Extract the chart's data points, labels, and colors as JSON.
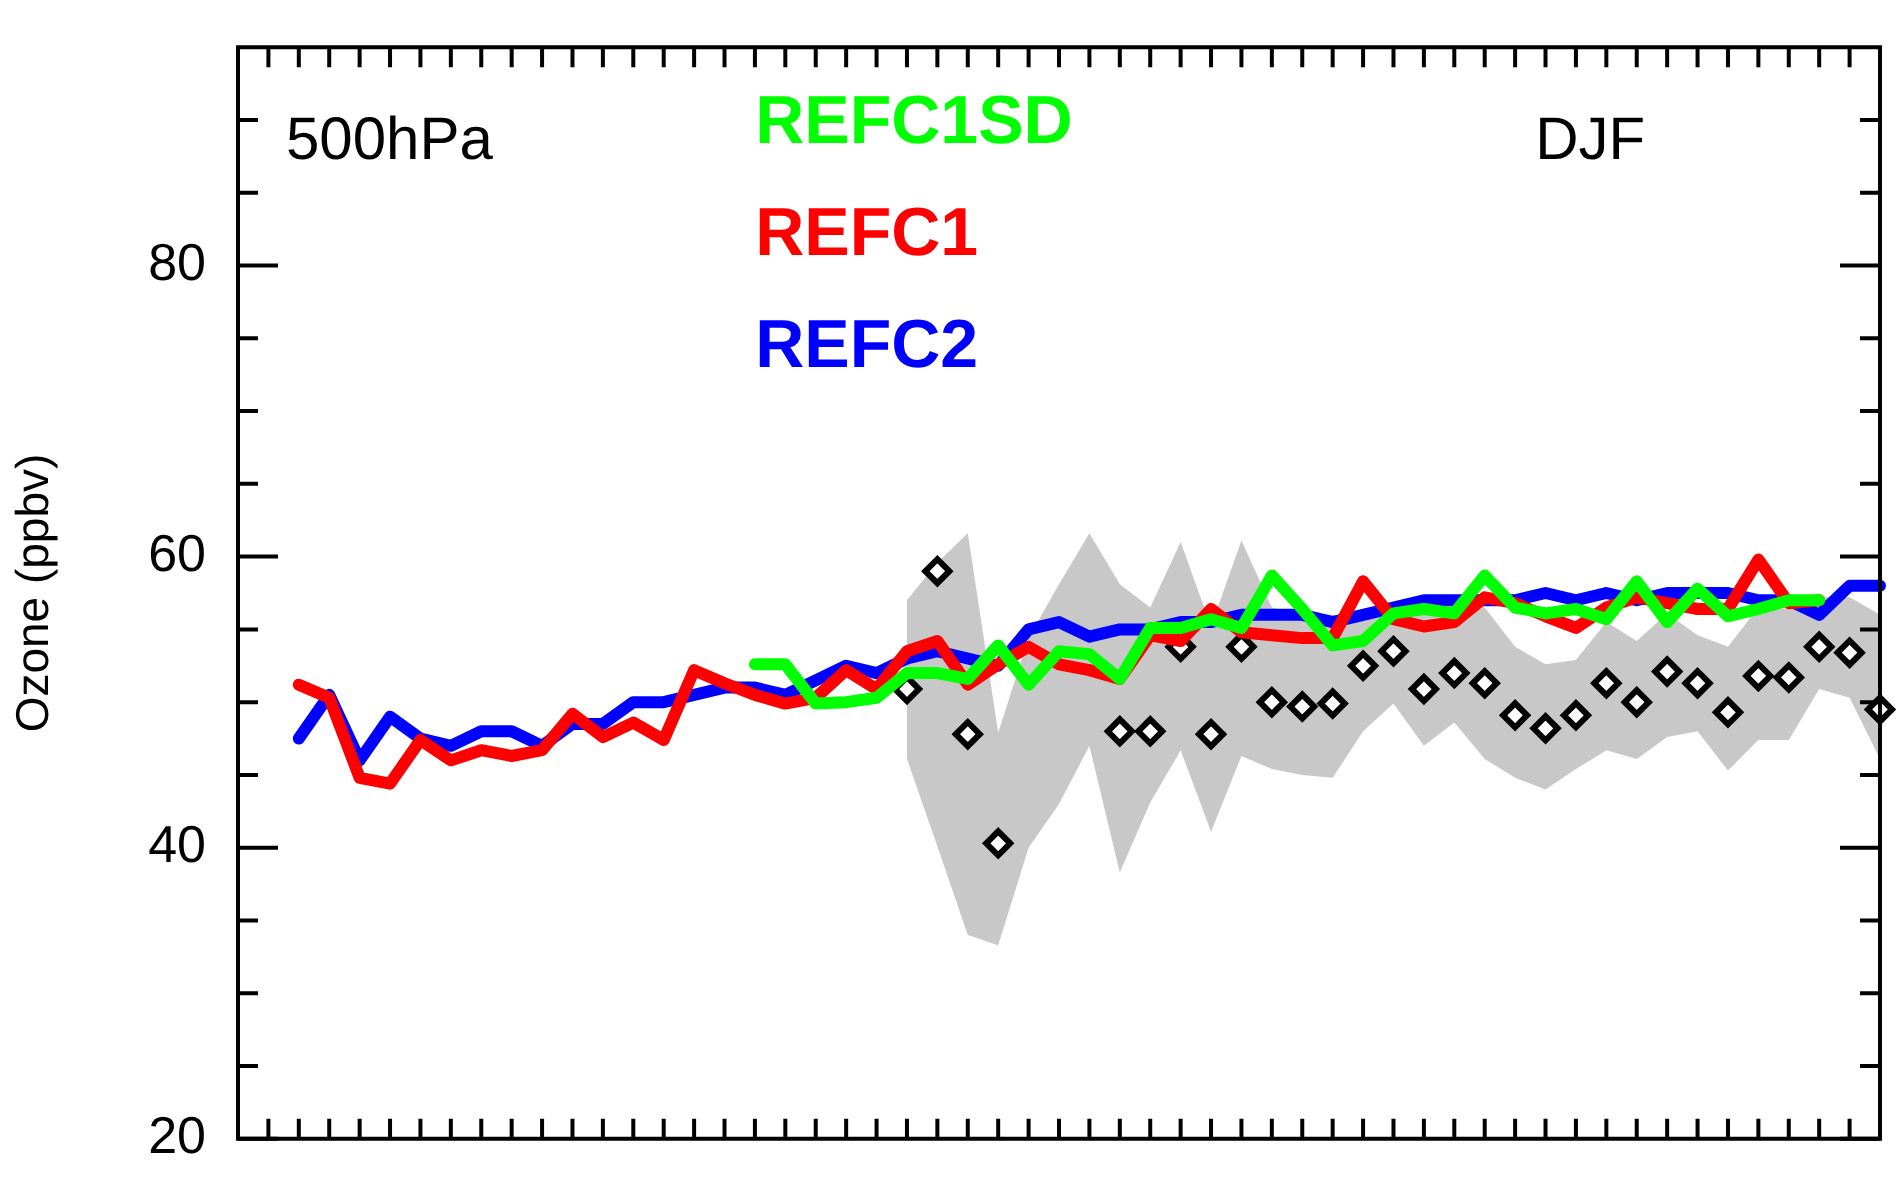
{
  "chart_data": {
    "type": "line",
    "ylabel": "Ozone (ppbv)",
    "annotations": [
      "500hPa",
      "DJF"
    ],
    "categories": [
      null,
      null,
      null,
      null,
      null,
      null,
      null,
      null,
      null,
      null,
      null,
      null,
      null,
      null,
      null,
      null,
      null,
      null,
      null,
      null,
      null,
      null,
      null,
      null,
      null,
      null,
      null,
      null,
      null,
      null,
      null,
      null,
      null,
      null,
      null,
      null,
      null,
      null,
      null,
      null,
      null,
      null,
      null,
      null,
      null,
      null,
      null,
      null,
      null,
      null,
      null,
      null,
      null,
      null,
      null
    ],
    "ylim": [
      20,
      95
    ],
    "yticks": [
      20,
      {
        "value": 25,
        "label": null
      },
      {
        "value": 30,
        "label": null
      },
      {
        "value": 35,
        "label": null
      },
      40,
      {
        "value": 45,
        "label": null
      },
      {
        "value": 50,
        "label": null
      },
      {
        "value": 55,
        "label": null
      },
      60,
      {
        "value": 65,
        "label": null
      },
      {
        "value": 70,
        "label": null
      },
      {
        "value": 75,
        "label": null
      },
      80,
      {
        "value": 85,
        "label": null
      },
      {
        "value": 90,
        "label": null
      }
    ],
    "tick_labels": "y",
    "legend": "top",
    "marker": "none",
    "line_style": "solid",
    "series": [
      {
        "name": "REFC2",
        "color": "#0000ff",
        "values": [
          null,
          null,
          47.5,
          50.5,
          46.0,
          49.0,
          47.5,
          47.0,
          48.0,
          48.0,
          47.0,
          48.5,
          48.5,
          50.0,
          50.0,
          50.5,
          51.0,
          51.0,
          50.5,
          51.5,
          52.5,
          52.0,
          53.0,
          53.5,
          53.0,
          52.5,
          55.0,
          55.5,
          54.5,
          55.0,
          55.0,
          55.5,
          55.5,
          56.0,
          56.0,
          56.0,
          55.5,
          56.0,
          56.5,
          57.0,
          57.0,
          57.0,
          57.0,
          57.5,
          57.0,
          57.5,
          57.0,
          57.5,
          57.5,
          57.5,
          57.0,
          57.0,
          56.0,
          58.0,
          58.0
        ]
      },
      {
        "name": "REFC1",
        "color": "#ff0000",
        "values": [
          null,
          null,
          51.2,
          50.3,
          44.8,
          44.4,
          47.4,
          46.0,
          46.7,
          46.3,
          46.7,
          49.2,
          47.6,
          48.6,
          47.4,
          52.2,
          51.3,
          50.5,
          49.9,
          50.3,
          52.2,
          50.9,
          53.5,
          54.2,
          51.2,
          52.6,
          53.8,
          52.6,
          52.2,
          51.6,
          54.6,
          54.2,
          56.4,
          54.8,
          54.6,
          54.4,
          54.4,
          58.3,
          55.7,
          55.2,
          55.5,
          57.2,
          56.8,
          55.9,
          55.1,
          56.5,
          57.2,
          56.8,
          56.4,
          56.4,
          59.8,
          56.8,
          57.0,
          null,
          null
        ]
      },
      {
        "name": "REFC1SD",
        "color": "#00ff00",
        "values": [
          null,
          null,
          null,
          null,
          null,
          null,
          null,
          null,
          null,
          null,
          null,
          null,
          null,
          null,
          null,
          null,
          null,
          52.6,
          52.6,
          49.9,
          50.0,
          50.3,
          52.0,
          52.0,
          51.6,
          53.9,
          51.2,
          53.5,
          53.3,
          51.6,
          55.1,
          55.1,
          55.7,
          55.1,
          58.7,
          56.4,
          53.9,
          54.2,
          56.1,
          56.4,
          56.1,
          58.7,
          56.5,
          56.1,
          56.4,
          55.7,
          58.3,
          55.5,
          57.8,
          55.9,
          56.4,
          57.0,
          57.0,
          null,
          null
        ]
      },
      {
        "type": "scatter",
        "marker": "diamond",
        "color": "#000000",
        "values": [
          null,
          null,
          null,
          null,
          null,
          null,
          null,
          null,
          null,
          null,
          null,
          null,
          null,
          null,
          null,
          null,
          null,
          null,
          null,
          null,
          null,
          null,
          50.9,
          59.0,
          47.8,
          40.3,
          null,
          null,
          null,
          48.0,
          48.0,
          53.8,
          47.8,
          53.8,
          50.0,
          49.7,
          49.9,
          52.5,
          53.5,
          50.9,
          52.0,
          51.3,
          49.1,
          48.2,
          49.1,
          51.3,
          50.0,
          52.1,
          51.3,
          49.3,
          51.8,
          51.7,
          53.8,
          53.4,
          49.5
        ],
        "lower": [
          null,
          null,
          null,
          null,
          null,
          null,
          null,
          null,
          null,
          null,
          null,
          null,
          null,
          null,
          null,
          null,
          null,
          null,
          null,
          null,
          null,
          null,
          46.1,
          40.1,
          34.0,
          33.3,
          40.0,
          43.0,
          47.0,
          38.3,
          43.1,
          46.7,
          41.1,
          46.3,
          45.4,
          45.0,
          44.8,
          48.0,
          49.9,
          47.0,
          48.6,
          46.1,
          44.8,
          44.0,
          45.4,
          46.7,
          46.1,
          47.6,
          48.0,
          45.3,
          47.4,
          47.4,
          50.9,
          50.3,
          46.1
        ],
        "upper": [
          null,
          null,
          null,
          null,
          null,
          null,
          null,
          null,
          null,
          null,
          null,
          null,
          null,
          null,
          null,
          null,
          null,
          null,
          null,
          null,
          null,
          null,
          57.0,
          59.6,
          61.6,
          47.9,
          54.4,
          58.1,
          61.6,
          58.1,
          56.5,
          61.0,
          55.2,
          61.1,
          56.5,
          56.0,
          56.0,
          56.0,
          56.5,
          56.0,
          57.0,
          56.5,
          53.8,
          52.6,
          52.9,
          55.5,
          54.2,
          56.1,
          54.6,
          53.8,
          56.5,
          56.4,
          57.2,
          57.2,
          56.0
        ]
      }
    ]
  }
}
